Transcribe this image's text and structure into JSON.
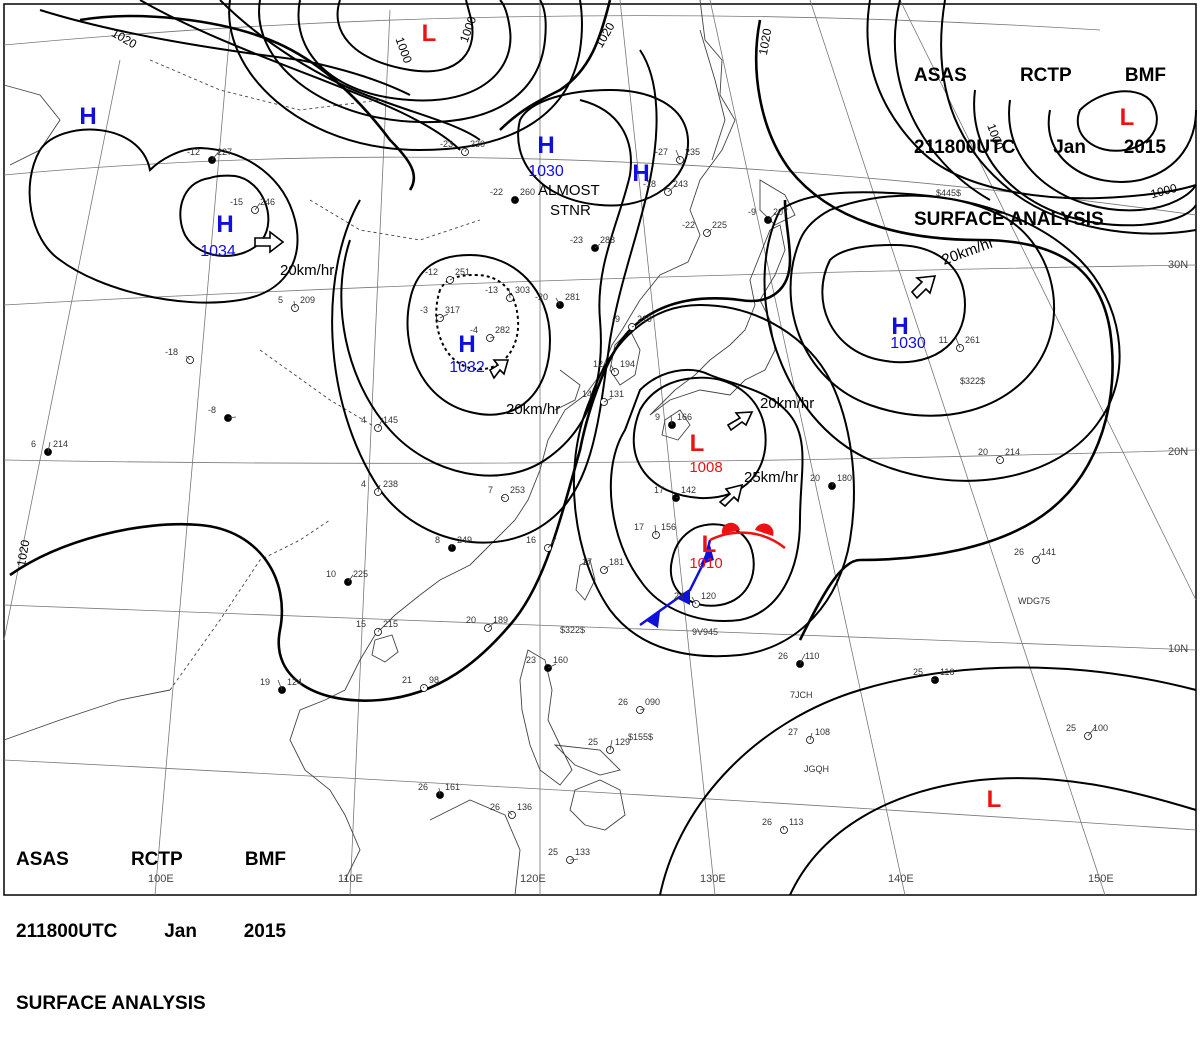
{
  "header": {
    "agency": [
      "ASAS",
      "RCTP",
      "BMF"
    ],
    "time": [
      "211800UTC",
      "Jan",
      "2015"
    ],
    "product": "SURFACE ANALYSIS"
  },
  "colors": {
    "high": "#1010dd",
    "low": "#ee1111",
    "front_cold": "#1010dd",
    "front_warm": "#ee1111",
    "isobar": "#000000",
    "coast": "#444444",
    "grid": "#777777"
  },
  "centers": [
    {
      "kind": "H",
      "pressure": ""
    },
    {
      "kind": "H",
      "pressure": "1034"
    },
    {
      "kind": "H",
      "pressure": "1030"
    },
    {
      "kind": "H",
      "pressure": ""
    },
    {
      "kind": "H",
      "pressure": "1032"
    },
    {
      "kind": "H",
      "pressure": "1030"
    },
    {
      "kind": "L",
      "pressure": ""
    },
    {
      "kind": "L",
      "pressure": ""
    },
    {
      "kind": "L",
      "pressure": "1008"
    },
    {
      "kind": "L",
      "pressure": "1010"
    },
    {
      "kind": "L",
      "pressure": ""
    }
  ],
  "isobar_labels": [
    "1020",
    "1020",
    "1000",
    "1000",
    "1020",
    "1020",
    "1000",
    "1000",
    "1020"
  ],
  "motion_labels": [
    "20km/hr",
    "20km/hr",
    "20km/hr",
    "20km/hr",
    "25km/hr",
    "20km/hr"
  ],
  "annotations": [
    "ALMOST",
    "STNR"
  ],
  "lon_labels": [
    "100E",
    "110E",
    "120E",
    "130E",
    "140E",
    "150E"
  ],
  "lat_labels": [
    "30N",
    "20N",
    "10N"
  ],
  "stations": [
    {
      "t": "-12",
      "p": "227"
    },
    {
      "t": "-15",
      "p": "246"
    },
    {
      "t": "-23",
      "p": "230"
    },
    {
      "t": "-22",
      "p": "260"
    },
    {
      "t": "-27",
      "p": "235"
    },
    {
      "t": "-18",
      "p": "243"
    },
    {
      "t": "-23",
      "p": "288"
    },
    {
      "t": "-12",
      "p": "251"
    },
    {
      "t": "-13",
      "p": "303"
    },
    {
      "t": "-20",
      "p": "281"
    },
    {
      "t": "-3",
      "p": "317"
    },
    {
      "t": "-4",
      "p": "282"
    },
    {
      "t": "6",
      "p": "214"
    },
    {
      "t": "5",
      "p": "209"
    },
    {
      "t": "-18",
      "p": ""
    },
    {
      "t": "-8",
      "p": ""
    },
    {
      "t": "4",
      "p": "145"
    },
    {
      "t": "4",
      "p": "238"
    },
    {
      "t": "8",
      "p": "249"
    },
    {
      "t": "7",
      "p": "253"
    },
    {
      "t": "16",
      "p": ""
    },
    {
      "t": "10",
      "p": "225"
    },
    {
      "t": "15",
      "p": "215"
    },
    {
      "t": "21",
      "p": "98"
    },
    {
      "t": "19",
      "p": "124"
    },
    {
      "t": "20",
      "p": "189"
    },
    {
      "t": "17",
      "p": "181"
    },
    {
      "t": "17",
      "p": "142"
    },
    {
      "t": "17",
      "p": "156"
    },
    {
      "t": "24",
      "p": "120"
    },
    {
      "t": "23",
      "p": "160"
    },
    {
      "t": "26",
      "p": "090"
    },
    {
      "t": "25",
      "p": "129"
    },
    {
      "t": "26",
      "p": "161"
    },
    {
      "t": "26",
      "p": "136"
    },
    {
      "t": "25",
      "p": "133"
    },
    {
      "t": "26",
      "p": "110"
    },
    {
      "t": "27",
      "p": "108"
    },
    {
      "t": "26",
      "p": "113"
    },
    {
      "t": "25",
      "p": "116"
    },
    {
      "t": "25",
      "p": "100"
    },
    {
      "t": "26",
      "p": "141"
    },
    {
      "t": "20",
      "p": "180"
    },
    {
      "t": "20",
      "p": "214"
    },
    {
      "t": "11",
      "p": "261"
    },
    {
      "t": "-9",
      "p": "207"
    },
    {
      "t": "-22",
      "p": "225"
    },
    {
      "t": "-9",
      "p": "219"
    },
    {
      "t": "9",
      "p": "166"
    },
    {
      "t": "12",
      "p": "194"
    },
    {
      "t": "14",
      "p": "131"
    }
  ],
  "ship_ids": [
    "$322$",
    "$155$",
    "$322$",
    "9V945",
    "JGQH",
    "7JCH",
    "WDG75",
    "$445$"
  ]
}
